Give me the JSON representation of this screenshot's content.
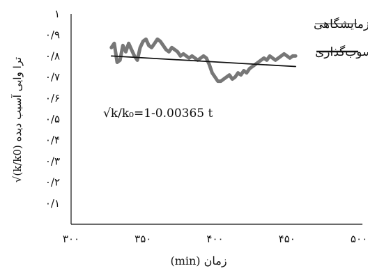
{
  "chart_data": {
    "type": "line",
    "title": "",
    "xlabel": "زمان (min)",
    "ylabel": "√(k/k0) ترا وایی آسیب دیده",
    "xlim": [
      300,
      500
    ],
    "ylim": [
      0,
      1
    ],
    "x_ticks": [
      300,
      350,
      400,
      450,
      500
    ],
    "x_tick_labels": [
      "۳۰۰",
      "۳۵۰",
      "۴۰۰",
      "۴۵۰",
      "۵۰۰"
    ],
    "y_ticks": [
      0.1,
      0.2,
      0.3,
      0.4,
      0.5,
      0.6,
      0.7,
      0.8,
      0.9,
      1
    ],
    "y_tick_labels": [
      "۰/۱",
      "۰/۲",
      "۰/۳",
      "۰/۴",
      "۰/۵",
      "۰/۶",
      "۰/۷",
      "۰/۸",
      "۰/۹",
      "۱"
    ],
    "grid": false,
    "legend_position": "top-right",
    "equation": "√k/k₀=1-0.00365 t",
    "series": [
      {
        "name": "داده‌های آزمایشگاهی",
        "color": "#777777",
        "x": [
          328,
          330,
          332,
          334,
          336,
          338,
          340,
          342,
          344,
          346,
          348,
          350,
          352,
          354,
          356,
          358,
          360,
          362,
          364,
          366,
          368,
          370,
          372,
          374,
          376,
          378,
          380,
          382,
          384,
          386,
          388,
          390,
          392,
          394,
          396,
          398,
          400,
          402,
          404,
          406,
          408,
          410,
          412,
          414,
          416,
          418,
          420,
          422,
          424,
          426,
          428,
          430,
          432,
          434,
          436,
          438,
          440,
          442,
          444,
          446,
          448,
          450,
          452,
          454,
          456
        ],
        "y": [
          0.84,
          0.86,
          0.77,
          0.78,
          0.85,
          0.82,
          0.86,
          0.83,
          0.8,
          0.78,
          0.84,
          0.87,
          0.88,
          0.85,
          0.84,
          0.86,
          0.88,
          0.87,
          0.85,
          0.83,
          0.82,
          0.84,
          0.83,
          0.82,
          0.8,
          0.81,
          0.8,
          0.79,
          0.8,
          0.79,
          0.78,
          0.79,
          0.8,
          0.79,
          0.76,
          0.72,
          0.7,
          0.68,
          0.68,
          0.69,
          0.7,
          0.71,
          0.69,
          0.7,
          0.72,
          0.71,
          0.73,
          0.72,
          0.74,
          0.75,
          0.76,
          0.77,
          0.78,
          0.79,
          0.78,
          0.8,
          0.79,
          0.78,
          0.79,
          0.8,
          0.81,
          0.8,
          0.79,
          0.8,
          0.8
        ]
      },
      {
        "name": "مکانیزم رسوب‌گذاری",
        "color": "#111111",
        "x": [
          328,
          456
        ],
        "y": [
          0.8,
          0.75
        ]
      }
    ]
  }
}
